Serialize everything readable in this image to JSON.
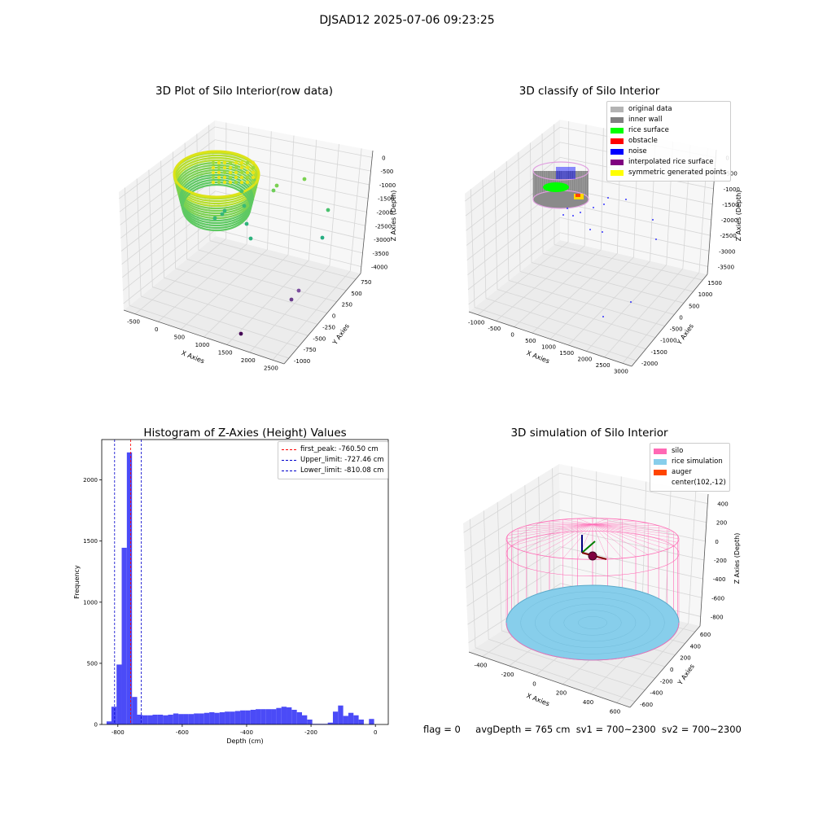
{
  "figure_title": "DJSAD12 2025-07-06 09:23:25",
  "footer": {
    "flag": "flag = 0",
    "avg_depth": "avgDepth = 765 cm",
    "sv1": "sv1 = 700~2300",
    "sv2": "sv2 = 700~2300"
  },
  "chart_data": [
    {
      "type": "scatter",
      "title": "3D Plot of Silo Interior(row data)",
      "xlabel": "X Axies",
      "ylabel": "Y Axies",
      "zlabel": "Z Axies (Depth)",
      "x_ticks": [
        "-500",
        "0",
        "500",
        "1000",
        "1500",
        "2000",
        "2500"
      ],
      "y_ticks": [
        "-1000",
        "-750",
        "-500",
        "-250",
        "0",
        "250",
        "500",
        "750"
      ],
      "z_ticks": [
        "0",
        "-500",
        "-1000",
        "-1500",
        "-2000",
        "-2500",
        "-3000",
        "-3500",
        "-4000"
      ]
    },
    {
      "type": "scatter",
      "title": "3D classify of Silo Interior",
      "xlabel": "X Axies",
      "ylabel": "Y Axies",
      "zlabel": "Z Axies (Depth)",
      "x_ticks": [
        "-1000",
        "-500",
        "0",
        "500",
        "1000",
        "1500",
        "2000",
        "2500",
        "3000"
      ],
      "y_ticks": [
        "-2000",
        "-1500",
        "-1000",
        "-500",
        "0",
        "500",
        "1000",
        "1500"
      ],
      "z_ticks": [
        "0",
        "-500",
        "-1000",
        "-1500",
        "-2000",
        "-2500",
        "-3000",
        "-3500"
      ],
      "legend": [
        {
          "label": "original data",
          "color": "#b3b3b3"
        },
        {
          "label": "inner wall",
          "color": "#808080"
        },
        {
          "label": "rice surface",
          "color": "#00ff00"
        },
        {
          "label": "obstacle",
          "color": "#ff0000"
        },
        {
          "label": "noise",
          "color": "#0000ff"
        },
        {
          "label": "interpolated rice surface",
          "color": "#800080"
        },
        {
          "label": "symmetric generated points",
          "color": "#ffff00"
        }
      ]
    },
    {
      "type": "bar",
      "title": "Histogram of Z-Axies (Height) Values",
      "xlabel": "Depth (cm)",
      "ylabel": "Frequency",
      "xlim": [
        -850,
        40
      ],
      "ylim": [
        0,
        2330
      ],
      "x_ticks": [
        -800,
        -600,
        -400,
        -200,
        0
      ],
      "y_ticks": [
        0,
        500,
        1000,
        1500,
        2000
      ],
      "bin_width": 16,
      "bins": [
        [
          -835,
          25
        ],
        [
          -820,
          145
        ],
        [
          -804,
          490
        ],
        [
          -788,
          1445
        ],
        [
          -772,
          2225
        ],
        [
          -756,
          225
        ],
        [
          -740,
          80
        ],
        [
          -724,
          75
        ],
        [
          -708,
          75
        ],
        [
          -692,
          80
        ],
        [
          -676,
          80
        ],
        [
          -660,
          75
        ],
        [
          -644,
          80
        ],
        [
          -628,
          90
        ],
        [
          -612,
          85
        ],
        [
          -596,
          85
        ],
        [
          -580,
          85
        ],
        [
          -564,
          90
        ],
        [
          -548,
          90
        ],
        [
          -532,
          95
        ],
        [
          -516,
          100
        ],
        [
          -500,
          95
        ],
        [
          -484,
          100
        ],
        [
          -468,
          105
        ],
        [
          -452,
          105
        ],
        [
          -436,
          110
        ],
        [
          -420,
          115
        ],
        [
          -404,
          115
        ],
        [
          -388,
          120
        ],
        [
          -372,
          125
        ],
        [
          -356,
          125
        ],
        [
          -340,
          125
        ],
        [
          -324,
          125
        ],
        [
          -308,
          135
        ],
        [
          -292,
          145
        ],
        [
          -276,
          140
        ],
        [
          -260,
          120
        ],
        [
          -244,
          100
        ],
        [
          -228,
          75
        ],
        [
          -212,
          40
        ],
        [
          -196,
          5
        ],
        [
          -180,
          5
        ],
        [
          -164,
          5
        ],
        [
          -148,
          15
        ],
        [
          -132,
          105
        ],
        [
          -116,
          155
        ],
        [
          -100,
          70
        ],
        [
          -84,
          95
        ],
        [
          -68,
          75
        ],
        [
          -52,
          40
        ],
        [
          -36,
          0
        ],
        [
          -20,
          45
        ]
      ],
      "lines": [
        {
          "label": "first_peak: -760.50 cm",
          "x": -760.5,
          "color": "#ff0000"
        },
        {
          "label": "Upper_limit: -727.46 cm",
          "x": -727.46,
          "color": "#0000cc"
        },
        {
          "label": "Lower_limit: -810.08 cm",
          "x": -810.08,
          "color": "#0000cc"
        }
      ],
      "bar_color": "#4b4bf7"
    },
    {
      "type": "scatter",
      "title": "3D simulation of Silo Interior",
      "xlabel": "X Axies",
      "ylabel": "Y Axies",
      "zlabel": "Z Axies (Depth)",
      "x_ticks": [
        "-400",
        "-200",
        "0",
        "200",
        "400",
        "600"
      ],
      "y_ticks": [
        "-600",
        "-400",
        "-200",
        "0",
        "200",
        "400",
        "600"
      ],
      "z_ticks": [
        "400",
        "200",
        "0",
        "-200",
        "-400",
        "-600",
        "-800"
      ],
      "legend": [
        {
          "label": "silo",
          "color": "#ff69b4"
        },
        {
          "label": "rice simulation",
          "color": "#87ceeb"
        },
        {
          "label": "auger",
          "color": "#ff4500"
        },
        {
          "label": "center(102,-12)",
          "color": ""
        }
      ]
    }
  ]
}
